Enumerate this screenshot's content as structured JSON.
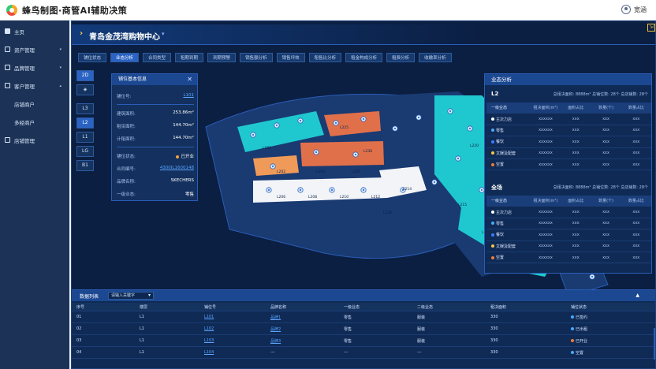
{
  "app": {
    "title": "蜂鸟制图·商管AI辅助决策",
    "user": "宽涵"
  },
  "sidebar": {
    "items": [
      {
        "label": "主页",
        "arrow": ""
      },
      {
        "label": "资产管理",
        "arrow": "▾"
      },
      {
        "label": "品牌管理",
        "arrow": "▾"
      },
      {
        "label": "客户管理",
        "arrow": "▴"
      },
      {
        "label": "店铺商户",
        "arrow": ""
      },
      {
        "label": "多经商户",
        "arrow": ""
      },
      {
        "label": "店铺管理",
        "arrow": ""
      }
    ]
  },
  "header": {
    "mall": "青岛金茂湾购物中心",
    "dropdown": "▾",
    "corner": "⇲"
  },
  "tabs": [
    "铺位状态",
    "业态分析",
    "合同类型",
    "租期到期",
    "到期预警",
    "销售额分析",
    "销售坪效",
    "租售比分析",
    "租金构成分析",
    "租费分析",
    "收缴率分析"
  ],
  "active_tab": 1,
  "views": {
    "v2d": "2D",
    "vlayers": "◈"
  },
  "floors": [
    "L3",
    "L2",
    "L1",
    "LG",
    "B1"
  ],
  "active_floor": "L2",
  "info": {
    "title": "铺位基本信息",
    "close": "✕",
    "rows": [
      {
        "label": "铺位号:",
        "value": "L101",
        "link": true
      },
      {
        "label": "建筑面积:",
        "value": "253.86m²"
      },
      {
        "label": "租赁面积:",
        "value": "144.70m²"
      },
      {
        "label": "计租面积:",
        "value": "144.70m²"
      },
      {
        "label": "铺位状态:",
        "value": "已开业",
        "dot": "#f0a33a"
      },
      {
        "label": "合同编号:",
        "value": "4300IL1600148",
        "link": true
      },
      {
        "label": "品牌名称:",
        "value": "SKECHERS"
      },
      {
        "label": "一级业态:",
        "value": "零售"
      }
    ]
  },
  "analysis": {
    "title": "业态分析",
    "sections": [
      {
        "level": "L2",
        "stats": "总租决面积: 8888m²   总铺位数: 28个   总店铺数: 28个",
        "headers": [
          "一级业态",
          "租决面积(m²)",
          "面积占比",
          "数量(个)",
          "数量占比"
        ],
        "rows": [
          {
            "name": "主次力店",
            "dot": "#ffffff",
            "v": [
              "xxxxxx",
              "xxx",
              "xxx",
              "xxx"
            ]
          },
          {
            "name": "零售",
            "dot": "#4aa8ff",
            "v": [
              "xxxxxx",
              "xxx",
              "xxx",
              "xxx"
            ]
          },
          {
            "name": "餐饮",
            "dot": "#3c7bff",
            "v": [
              "xxxxxx",
              "xxx",
              "xxx",
              "xxx"
            ]
          },
          {
            "name": "文娱及配套",
            "dot": "#f5c842",
            "v": [
              "xxxxxx",
              "xxx",
              "xxx",
              "xxx"
            ]
          },
          {
            "name": "空置",
            "dot": "#f07a3a",
            "v": [
              "xxxxxx",
              "xxx",
              "xxx",
              "xxx"
            ]
          }
        ]
      },
      {
        "level": "全场",
        "stats": "总租决面积: 8888m²   总铺位数: 28个   总店铺数: 28个",
        "headers": [
          "一级业态",
          "租决面积(m²)",
          "面积占比",
          "数量(个)",
          "数量占比"
        ],
        "rows": [
          {
            "name": "主次力店",
            "dot": "#ffffff",
            "v": [
              "xxxxxx",
              "xxx",
              "xxx",
              "xxx"
            ]
          },
          {
            "name": "零售",
            "dot": "#4aa8ff",
            "v": [
              "xxxxxx",
              "xxx",
              "xxx",
              "xxx"
            ]
          },
          {
            "name": "餐饮",
            "dot": "#3c7bff",
            "v": [
              "xxxxxx",
              "xxx",
              "xxx",
              "xxx"
            ]
          },
          {
            "name": "文娱及配套",
            "dot": "#f5c842",
            "v": [
              "xxxxxx",
              "xxx",
              "xxx",
              "xxx"
            ]
          },
          {
            "name": "空置",
            "dot": "#f07a3a",
            "v": [
              "xxxxxx",
              "xxx",
              "xxx",
              "xxx"
            ]
          }
        ]
      }
    ]
  },
  "list": {
    "title": "数据列表",
    "select_placeholder": "请输入关键字",
    "collapse": "▲",
    "headers": [
      "序号",
      "楼层",
      "铺位号",
      "品牌名称",
      "一级业态",
      "二级业态",
      "租决面积",
      "铺位状态"
    ],
    "rows": [
      {
        "no": "01",
        "floor": "L1",
        "unit": "L101",
        "brand": "品牌1",
        "cat1": "零售",
        "cat2": "服装",
        "area": "330",
        "status": "已签约",
        "dot": "#4aa8ff"
      },
      {
        "no": "02",
        "floor": "L1",
        "unit": "L102",
        "brand": "品牌2",
        "cat1": "零售",
        "cat2": "服装",
        "area": "330",
        "status": "已出租",
        "dot": "#4aa8ff"
      },
      {
        "no": "03",
        "floor": "L1",
        "unit": "L103",
        "brand": "品牌3",
        "cat1": "零售",
        "cat2": "服装",
        "area": "330",
        "status": "已开业",
        "dot": "#f07a3a"
      },
      {
        "no": "04",
        "floor": "L1",
        "unit": "L104",
        "brand": "---",
        "cat1": "---",
        "cat2": "---",
        "area": "330",
        "status": "空置",
        "dot": "#4aa8ff"
      }
    ]
  },
  "map_labels": [
    "L101",
    "L202",
    "L203",
    "L205",
    "L206",
    "L208",
    "L210",
    "L212",
    "L214",
    "L215",
    "L216",
    "L218",
    "L220",
    "L225",
    "L230",
    "L235"
  ]
}
